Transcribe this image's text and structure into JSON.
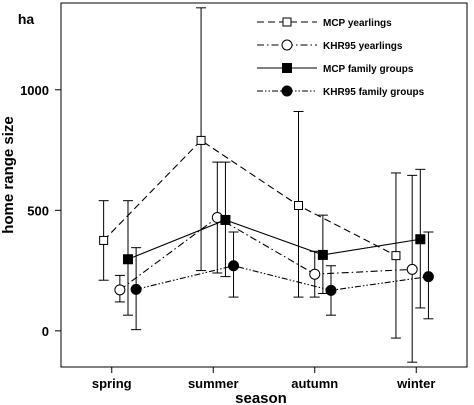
{
  "chart_data": {
    "type": "line",
    "unit_label": "ha",
    "xlabel": "season",
    "ylabel": "home range size",
    "categories": [
      "spring",
      "summer",
      "autumn",
      "winter"
    ],
    "ylim": [
      -150,
      1360
    ],
    "yticks": [
      0,
      500,
      1000
    ],
    "ytick_labels": [
      "0",
      "500",
      "1000"
    ],
    "grid": false,
    "legend_position": "top-right",
    "series": [
      {
        "name": "MCP yearlings",
        "line_style": "dashed",
        "marker": "square-open",
        "x": [
          0.42,
          1.38,
          2.34,
          3.3
        ],
        "values": [
          375,
          790,
          520,
          312
        ],
        "err_low": [
          210,
          250,
          140,
          -30
        ],
        "err_high": [
          540,
          1340,
          910,
          655
        ]
      },
      {
        "name": "KHR95 yearlings",
        "line_style": "dashdot",
        "marker": "circle-open",
        "x": [
          0.58,
          1.54,
          2.5,
          3.46
        ],
        "values": [
          170,
          470,
          235,
          255
        ],
        "err_low": [
          120,
          240,
          140,
          -130
        ],
        "err_high": [
          230,
          700,
          330,
          645
        ]
      },
      {
        "name": "MCP family groups",
        "line_style": "solid",
        "marker": "square-filled",
        "x": [
          0.66,
          1.62,
          2.58,
          3.54
        ],
        "values": [
          297,
          460,
          315,
          380
        ],
        "err_low": [
          65,
          225,
          155,
          95
        ],
        "err_high": [
          540,
          700,
          480,
          670
        ]
      },
      {
        "name": "KHR95 family groups",
        "line_style": "dashdotdot",
        "marker": "circle-filled",
        "x": [
          0.74,
          1.7,
          2.66,
          3.62
        ],
        "values": [
          172,
          270,
          168,
          225
        ],
        "err_low": [
          5,
          140,
          65,
          50
        ],
        "err_high": [
          345,
          410,
          270,
          410
        ]
      }
    ]
  }
}
